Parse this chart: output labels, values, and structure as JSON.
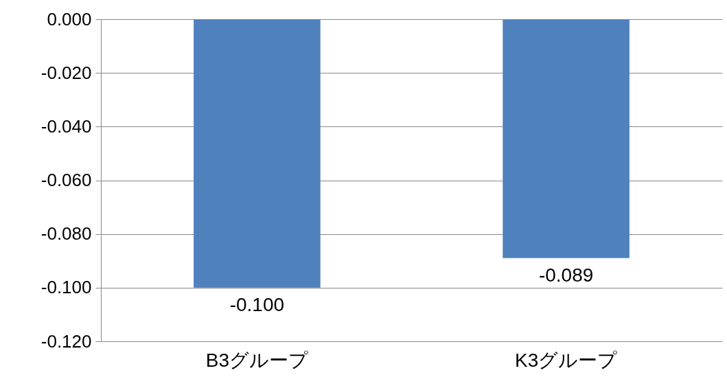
{
  "chart_data": {
    "type": "bar",
    "categories": [
      "B3グループ",
      "K3グループ"
    ],
    "values": [
      -0.1,
      -0.089
    ],
    "color": "#4f81bd",
    "value_labels": [
      "-0.100",
      "-0.089"
    ],
    "ylim": [
      -0.12,
      0
    ],
    "yticks": [
      {
        "value": 0,
        "label": "0.000"
      },
      {
        "value": -0.02,
        "label": "-0.020"
      },
      {
        "value": -0.04,
        "label": "-0.040"
      },
      {
        "value": -0.06,
        "label": "-0.060"
      },
      {
        "value": -0.08,
        "label": "-0.080"
      },
      {
        "value": -0.1,
        "label": "-0.100"
      },
      {
        "value": -0.12,
        "label": "-0.120"
      }
    ],
    "grid": "y"
  }
}
